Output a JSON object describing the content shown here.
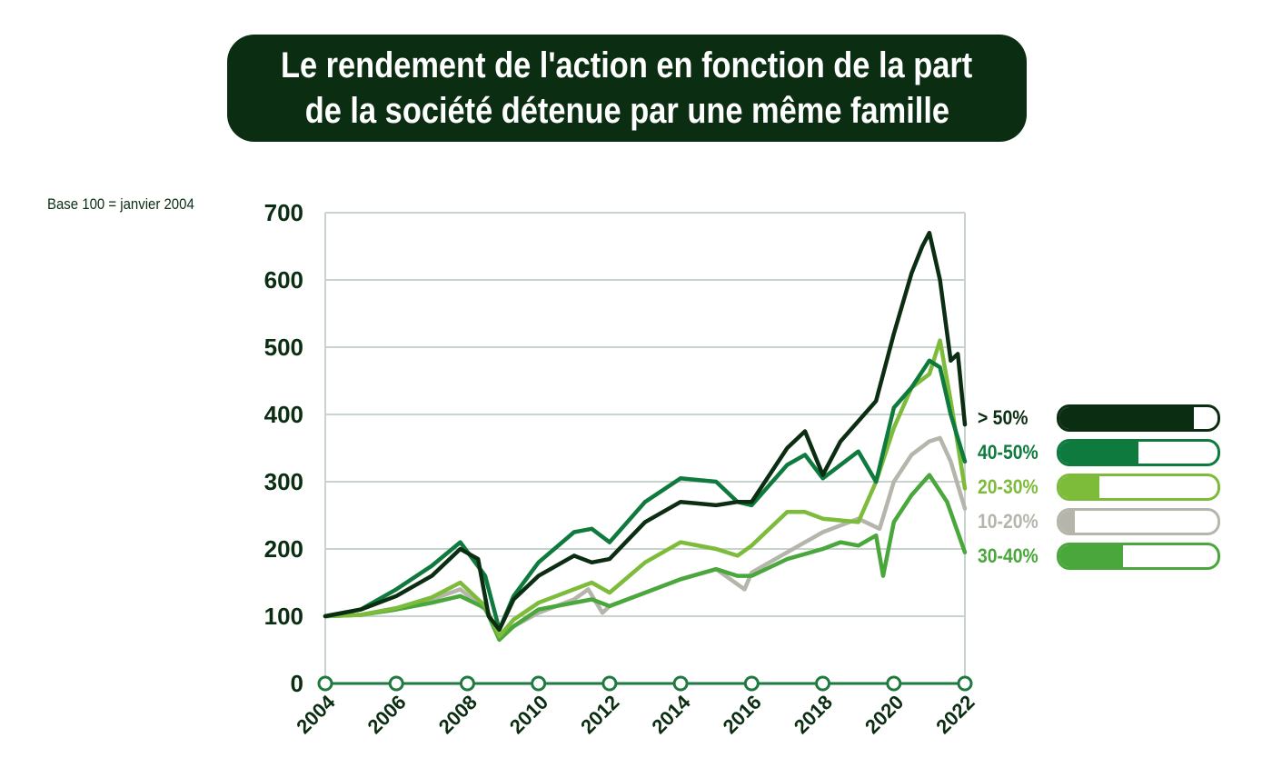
{
  "title": {
    "line1": "Le rendement de l'action en fonction de la part",
    "line2": "de la société détenue par une même famille"
  },
  "base_note": "Base 100 = janvier 2004",
  "legend": [
    {
      "label": "> 50%",
      "color": "#0b2e12",
      "fill": 0.85
    },
    {
      "label": "40-50%",
      "color": "#0f7a3d",
      "fill": 0.5
    },
    {
      "label": "20-30%",
      "color": "#7dbb3a",
      "fill": 0.25
    },
    {
      "label": "10-20%",
      "color": "#b5b5ac",
      "fill": 0.1
    },
    {
      "label": "30-40%",
      "color": "#4aa73c",
      "fill": 0.4
    }
  ],
  "chart_data": {
    "type": "line",
    "title": "Le rendement de l'action en fonction de la part de la société détenue par une même famille",
    "xlabel": "",
    "ylabel": "Base 100 = janvier 2004",
    "xlim": [
      2004,
      2022
    ],
    "ylim": [
      0,
      700
    ],
    "x_ticks": [
      2004,
      2006,
      2008,
      2010,
      2012,
      2014,
      2016,
      2018,
      2020,
      2022
    ],
    "y_ticks": [
      0,
      100,
      200,
      300,
      400,
      500,
      600,
      700
    ],
    "grid": "horizontal",
    "legend_position": "right",
    "series": [
      {
        "name": "10-20%",
        "color": "#b5b5ac",
        "x": [
          2004,
          2005,
          2006,
          2007,
          2007.8,
          2008.5,
          2008.9,
          2009.3,
          2010,
          2011,
          2011.4,
          2011.8,
          2012,
          2013,
          2014,
          2015,
          2015.8,
          2016,
          2017,
          2018,
          2019,
          2019.6,
          2020,
          2020.5,
          2021,
          2021.3,
          2021.6,
          2022
        ],
        "y": [
          100,
          102,
          112,
          125,
          140,
          110,
          72,
          85,
          105,
          125,
          140,
          105,
          115,
          135,
          155,
          170,
          140,
          165,
          195,
          225,
          245,
          230,
          300,
          340,
          360,
          365,
          330,
          260
        ]
      },
      {
        "name": "30-40%",
        "color": "#4aa73c",
        "x": [
          2004,
          2005,
          2006,
          2007,
          2007.8,
          2008.5,
          2008.9,
          2009.3,
          2010,
          2011,
          2011.5,
          2012,
          2013,
          2014,
          2015,
          2015.6,
          2016,
          2017,
          2018,
          2018.5,
          2019,
          2019.5,
          2019.7,
          2020,
          2020.5,
          2021,
          2021.5,
          2022
        ],
        "y": [
          100,
          102,
          110,
          120,
          130,
          112,
          65,
          85,
          110,
          120,
          125,
          115,
          135,
          155,
          170,
          160,
          160,
          185,
          200,
          210,
          205,
          220,
          160,
          240,
          280,
          310,
          270,
          195
        ]
      },
      {
        "name": "20-30%",
        "color": "#7dbb3a",
        "x": [
          2004,
          2005,
          2006,
          2007,
          2007.8,
          2008.5,
          2008.9,
          2009.3,
          2010,
          2011,
          2011.5,
          2012,
          2013,
          2014,
          2015,
          2015.6,
          2016,
          2017,
          2017.5,
          2018,
          2019,
          2019.5,
          2020,
          2020.5,
          2021,
          2021.3,
          2021.6,
          2022
        ],
        "y": [
          100,
          102,
          112,
          128,
          150,
          115,
          70,
          95,
          120,
          140,
          150,
          135,
          180,
          210,
          200,
          190,
          205,
          255,
          255,
          245,
          240,
          300,
          380,
          440,
          460,
          510,
          420,
          290
        ]
      },
      {
        "name": "40-50%",
        "color": "#0f7a3d",
        "x": [
          2004,
          2005,
          2006,
          2007,
          2007.8,
          2008.5,
          2008.9,
          2009.3,
          2010,
          2011,
          2011.5,
          2012,
          2013,
          2014,
          2015,
          2015.6,
          2016,
          2017,
          2017.5,
          2018,
          2019,
          2019.5,
          2020,
          2020.5,
          2021,
          2021.3,
          2021.6,
          2022
        ],
        "y": [
          100,
          110,
          140,
          175,
          210,
          160,
          80,
          130,
          180,
          225,
          230,
          210,
          270,
          305,
          300,
          270,
          265,
          325,
          340,
          305,
          345,
          300,
          410,
          440,
          480,
          470,
          400,
          330
        ]
      },
      {
        "name": "> 50%",
        "color": "#0b2e12",
        "x": [
          2004,
          2005,
          2006,
          2007,
          2007.8,
          2008.3,
          2008.6,
          2008.9,
          2009.3,
          2010,
          2011,
          2011.5,
          2012,
          2013,
          2014,
          2015,
          2015.6,
          2016,
          2017,
          2017.5,
          2018,
          2018.5,
          2019,
          2019.5,
          2020,
          2020.5,
          2020.8,
          2021,
          2021.3,
          2021.6,
          2021.8,
          2022
        ],
        "y": [
          100,
          110,
          130,
          160,
          200,
          185,
          100,
          80,
          125,
          160,
          190,
          180,
          185,
          240,
          270,
          265,
          270,
          270,
          350,
          375,
          310,
          360,
          390,
          420,
          520,
          610,
          650,
          670,
          600,
          480,
          490,
          385
        ]
      }
    ]
  }
}
